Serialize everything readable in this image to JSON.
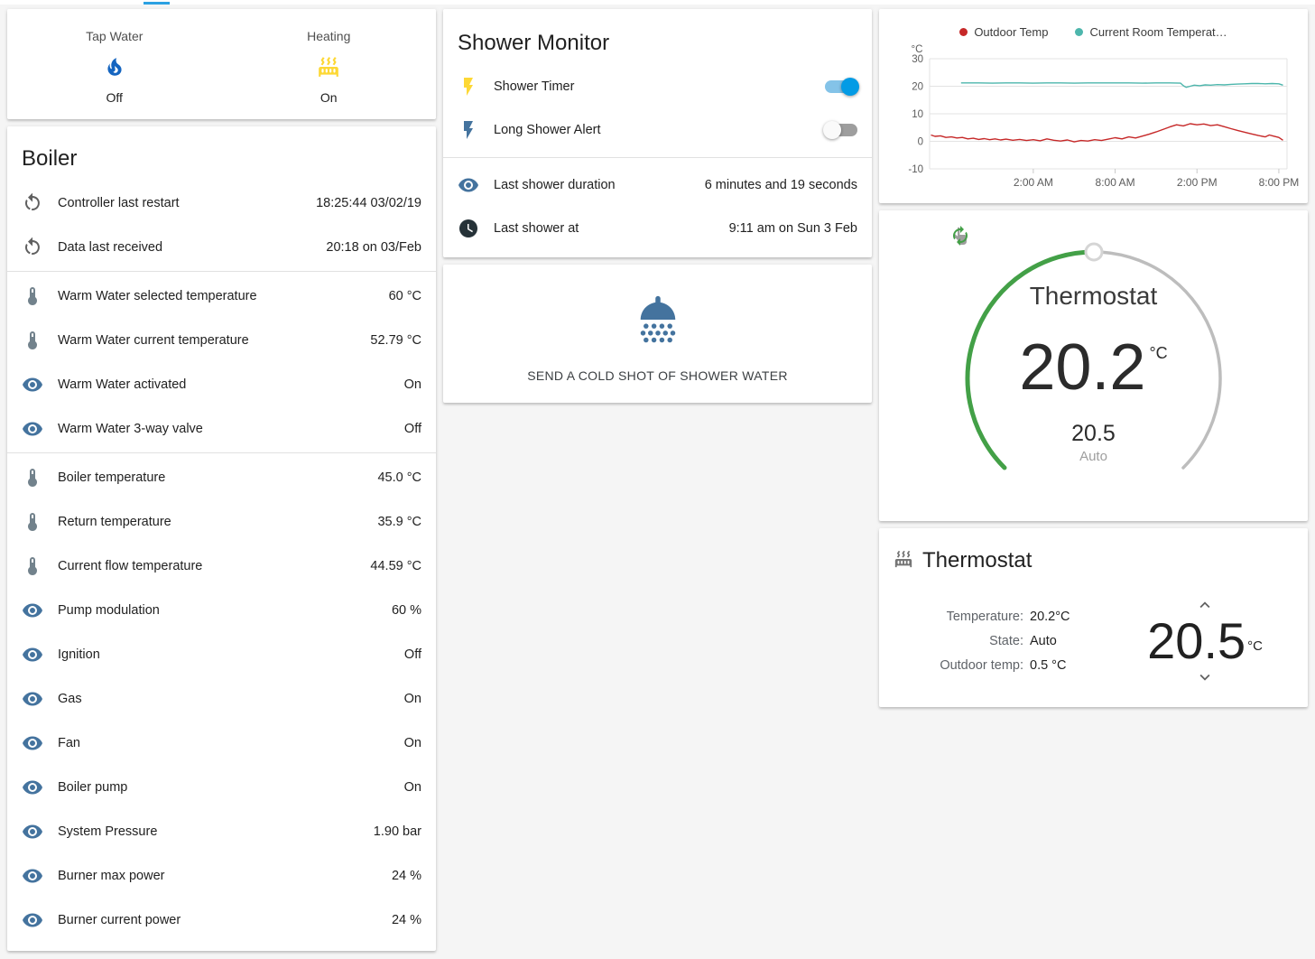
{
  "theme": {
    "background": "#f5f5f5",
    "card_background": "#ffffff",
    "accent": "#039be5",
    "tab_indicator_color": "#2ba1e2"
  },
  "glance": {
    "items": [
      {
        "label": "Tap Water",
        "state": "Off",
        "icon": "fire",
        "icon_color": "#1565c0"
      },
      {
        "label": "Heating",
        "state": "On",
        "icon": "radiator",
        "icon_color": "#fdd835"
      }
    ]
  },
  "boiler": {
    "title": "Boiler",
    "sections": [
      {
        "rows": [
          {
            "icon": "restart",
            "icon_color": "#606060",
            "label": "Controller last restart",
            "value": "18:25:44 03/02/19"
          },
          {
            "icon": "restart",
            "icon_color": "#606060",
            "label": "Data last received",
            "value": "20:18 on 03/Feb"
          }
        ]
      },
      {
        "rows": [
          {
            "icon": "thermometer",
            "icon_color": "#72828c",
            "label": "Warm Water selected temperature",
            "value": "60 °C"
          },
          {
            "icon": "thermometer",
            "icon_color": "#72828c",
            "label": "Warm Water current temperature",
            "value": "52.79 °C"
          },
          {
            "icon": "eye",
            "icon_color": "#44739e",
            "label": "Warm Water activated",
            "value": "On"
          },
          {
            "icon": "eye",
            "icon_color": "#44739e",
            "label": "Warm Water 3-way valve",
            "value": "Off"
          }
        ]
      },
      {
        "rows": [
          {
            "icon": "thermometer",
            "icon_color": "#72828c",
            "label": "Boiler temperature",
            "value": "45.0 °C"
          },
          {
            "icon": "thermometer",
            "icon_color": "#72828c",
            "label": "Return temperature",
            "value": "35.9 °C"
          },
          {
            "icon": "thermometer",
            "icon_color": "#72828c",
            "label": "Current flow temperature",
            "value": "44.59 °C"
          },
          {
            "icon": "eye",
            "icon_color": "#44739e",
            "label": "Pump modulation",
            "value": "60 %"
          },
          {
            "icon": "eye",
            "icon_color": "#44739e",
            "label": "Ignition",
            "value": "Off"
          },
          {
            "icon": "eye",
            "icon_color": "#44739e",
            "label": "Gas",
            "value": "On"
          },
          {
            "icon": "eye",
            "icon_color": "#44739e",
            "label": "Fan",
            "value": "On"
          },
          {
            "icon": "eye",
            "icon_color": "#44739e",
            "label": "Boiler pump",
            "value": "On"
          },
          {
            "icon": "eye",
            "icon_color": "#44739e",
            "label": "System Pressure",
            "value": "1.90 bar"
          },
          {
            "icon": "eye",
            "icon_color": "#44739e",
            "label": "Burner max power",
            "value": "24 %"
          },
          {
            "icon": "eye",
            "icon_color": "#44739e",
            "label": "Burner current power",
            "value": "24 %"
          }
        ]
      }
    ]
  },
  "shower_monitor": {
    "title": "Shower Monitor",
    "toggles": [
      {
        "icon": "flash",
        "icon_color": "#fdd835",
        "label": "Shower Timer",
        "on": true
      },
      {
        "icon": "flash",
        "icon_color": "#44739e",
        "label": "Long Shower Alert",
        "on": false
      }
    ],
    "info_rows": [
      {
        "icon": "eye",
        "icon_color": "#44739e",
        "label": "Last shower duration",
        "value": "6 minutes and 19 seconds"
      },
      {
        "icon": "clock",
        "icon_color": "#263238",
        "label": "Last shower at",
        "value": "9:11 am on Sun 3 Feb"
      }
    ]
  },
  "shower_action": {
    "icon": "shower-head",
    "icon_color": "#44739e",
    "button_label": "SEND A COLD SHOT OF SHOWER WATER"
  },
  "chart_data": {
    "type": "line",
    "title": "",
    "unit": "°C",
    "ylim": [
      -10,
      30
    ],
    "yticks": [
      30,
      20,
      10,
      0,
      -10
    ],
    "xlim": [
      -5.6,
      20.6
    ],
    "xticks": [
      {
        "pos": 2,
        "label": "2:00 AM"
      },
      {
        "pos": 8,
        "label": "8:00 AM"
      },
      {
        "pos": 14,
        "label": "2:00 PM"
      },
      {
        "pos": 20,
        "label": "8:00 PM"
      }
    ],
    "grid": true,
    "legend_position": "top",
    "series": [
      {
        "name": "Outdoor Temp",
        "color": "#c62828",
        "points": [
          [
            -5.5,
            2.3
          ],
          [
            -5.2,
            1.8
          ],
          [
            -4.8,
            2.0
          ],
          [
            -4.4,
            1.4
          ],
          [
            -4.0,
            1.6
          ],
          [
            -3.6,
            1.2
          ],
          [
            -3.2,
            1.4
          ],
          [
            -2.8,
            0.9
          ],
          [
            -2.4,
            1.1
          ],
          [
            -2.0,
            0.7
          ],
          [
            -1.6,
            1.0
          ],
          [
            -1.2,
            0.6
          ],
          [
            -0.8,
            0.9
          ],
          [
            -0.4,
            0.5
          ],
          [
            0.0,
            0.8
          ],
          [
            0.5,
            0.4
          ],
          [
            1.0,
            0.7
          ],
          [
            1.5,
            0.3
          ],
          [
            2.0,
            0.6
          ],
          [
            2.5,
            0.2
          ],
          [
            3.0,
            0.9
          ],
          [
            3.5,
            0.4
          ],
          [
            4.0,
            0.1
          ],
          [
            4.5,
            0.5
          ],
          [
            5.0,
            -0.2
          ],
          [
            5.5,
            0.3
          ],
          [
            6.0,
            0.1
          ],
          [
            6.5,
            0.6
          ],
          [
            7.0,
            0.3
          ],
          [
            7.5,
            0.8
          ],
          [
            8.0,
            1.3
          ],
          [
            8.5,
            0.9
          ],
          [
            9.0,
            1.6
          ],
          [
            9.5,
            1.2
          ],
          [
            10.0,
            1.9
          ],
          [
            10.5,
            2.6
          ],
          [
            11.0,
            3.4
          ],
          [
            11.5,
            4.3
          ],
          [
            12.0,
            5.2
          ],
          [
            12.5,
            6.0
          ],
          [
            13.0,
            5.6
          ],
          [
            13.5,
            6.4
          ],
          [
            14.0,
            6.0
          ],
          [
            14.5,
            6.3
          ],
          [
            15.0,
            5.7
          ],
          [
            15.5,
            6.0
          ],
          [
            16.0,
            5.3
          ],
          [
            16.5,
            4.6
          ],
          [
            17.0,
            3.9
          ],
          [
            17.5,
            3.3
          ],
          [
            18.0,
            2.7
          ],
          [
            18.5,
            2.1
          ],
          [
            19.0,
            1.6
          ],
          [
            19.3,
            2.3
          ],
          [
            19.6,
            1.9
          ],
          [
            20.0,
            1.4
          ],
          [
            20.3,
            0.4
          ]
        ]
      },
      {
        "name": "Current Room Temperat…",
        "color": "#4db6ac",
        "points": [
          [
            -3.3,
            21.2
          ],
          [
            -2.0,
            21.2
          ],
          [
            -1.0,
            21.1
          ],
          [
            0.0,
            21.2
          ],
          [
            1.0,
            21.2
          ],
          [
            2.0,
            21.1
          ],
          [
            3.0,
            21.2
          ],
          [
            4.0,
            21.2
          ],
          [
            5.0,
            21.1
          ],
          [
            6.0,
            21.2
          ],
          [
            7.0,
            21.2
          ],
          [
            8.0,
            21.2
          ],
          [
            9.0,
            21.2
          ],
          [
            10.0,
            21.1
          ],
          [
            11.0,
            21.2
          ],
          [
            12.0,
            21.2
          ],
          [
            12.8,
            21.1
          ],
          [
            13.0,
            20.2
          ],
          [
            13.2,
            19.6
          ],
          [
            13.5,
            20.0
          ],
          [
            13.8,
            20.4
          ],
          [
            14.2,
            20.2
          ],
          [
            14.6,
            20.5
          ],
          [
            15.0,
            20.4
          ],
          [
            15.5,
            20.6
          ],
          [
            16.0,
            20.5
          ],
          [
            16.5,
            20.7
          ],
          [
            17.0,
            20.8
          ],
          [
            17.5,
            20.9
          ],
          [
            18.0,
            21.0
          ],
          [
            18.5,
            21.0
          ],
          [
            19.0,
            20.9
          ],
          [
            19.5,
            21.0
          ],
          [
            20.0,
            20.9
          ],
          [
            20.3,
            20.4
          ]
        ]
      }
    ]
  },
  "thermostat_gauge": {
    "title": "Thermostat",
    "current_temp": "20.2",
    "unit": "°C",
    "target_temp": "20.5",
    "mode": "Auto",
    "arc_active_color": "#43a047",
    "arc_inactive_color": "#bdbdbd",
    "mode_icons": [
      {
        "name": "hand-pointing",
        "color": "#9e9e9e"
      },
      {
        "name": "autorenew",
        "color": "#43a047"
      }
    ]
  },
  "thermostat_card": {
    "icon": "radiator",
    "icon_color": "#757575",
    "title": "Thermostat",
    "attributes": [
      {
        "label": "Temperature:",
        "value": "20.2°C"
      },
      {
        "label": "State:",
        "value": "Auto"
      },
      {
        "label": "Outdoor temp:",
        "value": "0.5 °C"
      }
    ],
    "target_temp": "20.5",
    "unit": "°C"
  }
}
